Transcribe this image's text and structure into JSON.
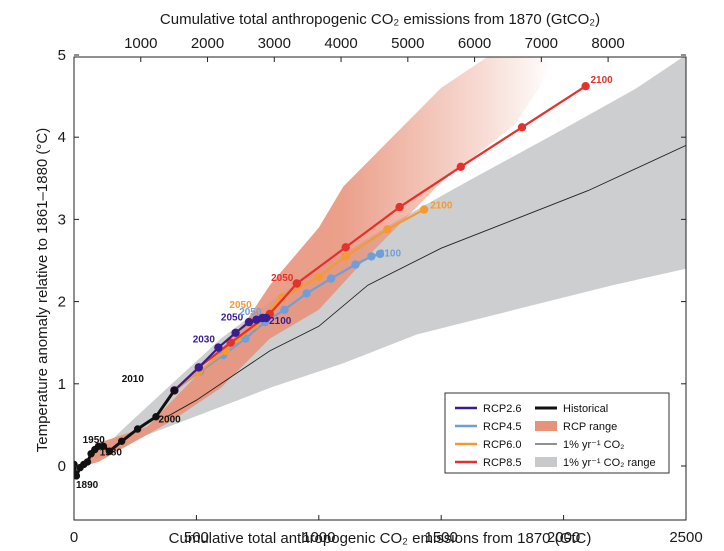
{
  "chart_data": {
    "type": "line",
    "xlabel_bottom": "Cumulative total anthropogenic CO₂ emissions from 1870 (GtC)",
    "xlabel_top": "Cumulative total anthropogenic CO₂ emissions from 1870 (GtCO₂)",
    "ylabel": "Temperature anomaly relative to 1861–1880 (°C)",
    "xlim": [
      0,
      2500
    ],
    "ylim": [
      -0.35,
      5
    ],
    "x_ticks": [
      "0",
      "500",
      "1000",
      "1500",
      "2000",
      "2500"
    ],
    "x_tick_values": [
      0,
      500,
      1000,
      1500,
      2000,
      2500
    ],
    "x_top_ticks": [
      "1000",
      "2000",
      "3000",
      "4000",
      "5000",
      "6000",
      "7000",
      "8000"
    ],
    "x_top_tick_values": [
      1000,
      2000,
      3000,
      4000,
      5000,
      6000,
      7000,
      8000
    ],
    "y_ticks": [
      "0",
      "1",
      "2",
      "3",
      "4",
      "5"
    ],
    "y_tick_values": [
      0,
      1,
      2,
      3,
      4,
      5
    ],
    "colors": {
      "rcp26": "#3a1d8f",
      "rcp45": "#6f9fd8",
      "rcp60": "#f59a32",
      "rcp85": "#e4312b",
      "historical": "#111111",
      "rcp_range": "#e8927a",
      "one_pct_range": "#c8c9cb"
    },
    "rcp_range_polygon": [
      [
        40,
        0.0
      ],
      [
        100,
        0.28
      ],
      [
        300,
        0.48
      ],
      [
        500,
        1.1
      ],
      [
        700,
        1.75
      ],
      [
        800,
        2.2
      ],
      [
        1000,
        2.9
      ],
      [
        1100,
        3.4
      ],
      [
        1250,
        3.85
      ],
      [
        1500,
        4.6
      ],
      [
        1700,
        5.0
      ],
      [
        1960,
        5.0
      ],
      [
        1900,
        4.6
      ],
      [
        1800,
        4.15
      ],
      [
        1500,
        3.45
      ],
      [
        1200,
        2.55
      ],
      [
        1000,
        1.9
      ],
      [
        800,
        1.55
      ],
      [
        600,
        0.95
      ],
      [
        400,
        0.55
      ],
      [
        100,
        0.05
      ]
    ],
    "one_pct_range_polygon": [
      [
        80,
        0.1
      ],
      [
        200,
        0.45
      ],
      [
        400,
        1.0
      ],
      [
        600,
        1.55
      ],
      [
        800,
        2.0
      ],
      [
        1000,
        2.4
      ],
      [
        1300,
        2.95
      ],
      [
        1600,
        3.45
      ],
      [
        2000,
        4.1
      ],
      [
        2300,
        4.6
      ],
      [
        2500,
        5.0
      ],
      [
        2500,
        2.4
      ],
      [
        2200,
        2.2
      ],
      [
        1800,
        1.9
      ],
      [
        1400,
        1.6
      ],
      [
        1100,
        1.25
      ],
      [
        800,
        0.95
      ],
      [
        600,
        0.72
      ],
      [
        300,
        0.38
      ],
      [
        100,
        0.08
      ]
    ],
    "one_pct_line": [
      [
        380,
        0.6
      ],
      [
        500,
        0.8
      ],
      [
        800,
        1.4
      ],
      [
        1000,
        1.7
      ],
      [
        1200,
        2.2
      ],
      [
        1500,
        2.65
      ],
      [
        1800,
        3.0
      ],
      [
        2100,
        3.35
      ],
      [
        2500,
        3.9
      ]
    ],
    "series": [
      {
        "name": "Historical",
        "x": [
          0,
          10,
          25,
          40,
          55,
          70,
          85,
          100,
          120,
          145,
          195,
          260,
          335,
          410
        ],
        "y": [
          0.02,
          -0.12,
          -0.02,
          0.02,
          0.05,
          0.15,
          0.2,
          0.24,
          0.24,
          0.18,
          0.3,
          0.45,
          0.6,
          0.92
        ]
      },
      {
        "name": "RCP2.6",
        "x": [
          410,
          510,
          590,
          660,
          715,
          745,
          770,
          785
        ],
        "y": [
          0.92,
          1.2,
          1.44,
          1.62,
          1.75,
          1.78,
          1.8,
          1.8
        ]
      },
      {
        "name": "RCP4.5",
        "x": [
          410,
          515,
          610,
          700,
          780,
          860,
          950,
          1050,
          1150,
          1215,
          1250
        ],
        "y": [
          0.92,
          1.15,
          1.35,
          1.55,
          1.75,
          1.9,
          2.1,
          2.28,
          2.45,
          2.55,
          2.58
        ]
      },
      {
        "name": "RCP6.0",
        "x": [
          410,
          510,
          620,
          740,
          850,
          1000,
          1110,
          1280,
          1430
        ],
        "y": [
          0.92,
          1.15,
          1.4,
          1.72,
          2.05,
          2.3,
          2.55,
          2.88,
          3.12
        ]
      },
      {
        "name": "RCP8.5",
        "x": [
          410,
          510,
          640,
          800,
          910,
          1110,
          1330,
          1580,
          1830,
          2090
        ],
        "y": [
          0.92,
          1.2,
          1.5,
          1.85,
          2.22,
          2.66,
          3.15,
          3.64,
          4.12,
          4.62
        ]
      }
    ],
    "annotations": [
      {
        "text": "1890",
        "x": 8,
        "y": -0.27,
        "color": "#111111"
      },
      {
        "text": "1950",
        "x": 35,
        "y": 0.28,
        "color": "#111111"
      },
      {
        "text": "1980",
        "x": 105,
        "y": 0.13,
        "color": "#111111"
      },
      {
        "text": "2000",
        "x": 345,
        "y": 0.53,
        "color": "#111111"
      },
      {
        "text": "2010",
        "x": 195,
        "y": 1.02,
        "color": "#111111"
      },
      {
        "text": "2030",
        "x": 485,
        "y": 1.5,
        "color": "#3a1d8f"
      },
      {
        "text": "2050",
        "x": 600,
        "y": 1.77,
        "color": "#3a1d8f"
      },
      {
        "text": "2050",
        "x": 635,
        "y": 1.92,
        "color": "#f59a32"
      },
      {
        "text": "2050",
        "x": 675,
        "y": 1.84,
        "color": "#6f9fd8"
      },
      {
        "text": "2100",
        "x": 797,
        "y": 1.73,
        "color": "#3a1d8f"
      },
      {
        "text": "2050",
        "x": 805,
        "y": 2.25,
        "color": "#e4312b"
      },
      {
        "text": "2100",
        "x": 1245,
        "y": 2.55,
        "color": "#6f9fd8"
      },
      {
        "text": "2100",
        "x": 1455,
        "y": 3.13,
        "color": "#f59a32"
      },
      {
        "text": "2100",
        "x": 2110,
        "y": 4.66,
        "color": "#e4312b"
      }
    ],
    "legend": {
      "placement": "bottom-right",
      "items_left": [
        "RCP2.6",
        "RCP4.5",
        "RCP6.0",
        "RCP8.5"
      ],
      "items_right": [
        "Historical",
        "RCP range",
        "1% yr⁻¹ CO₂",
        "1% yr⁻¹ CO₂ range"
      ]
    }
  }
}
